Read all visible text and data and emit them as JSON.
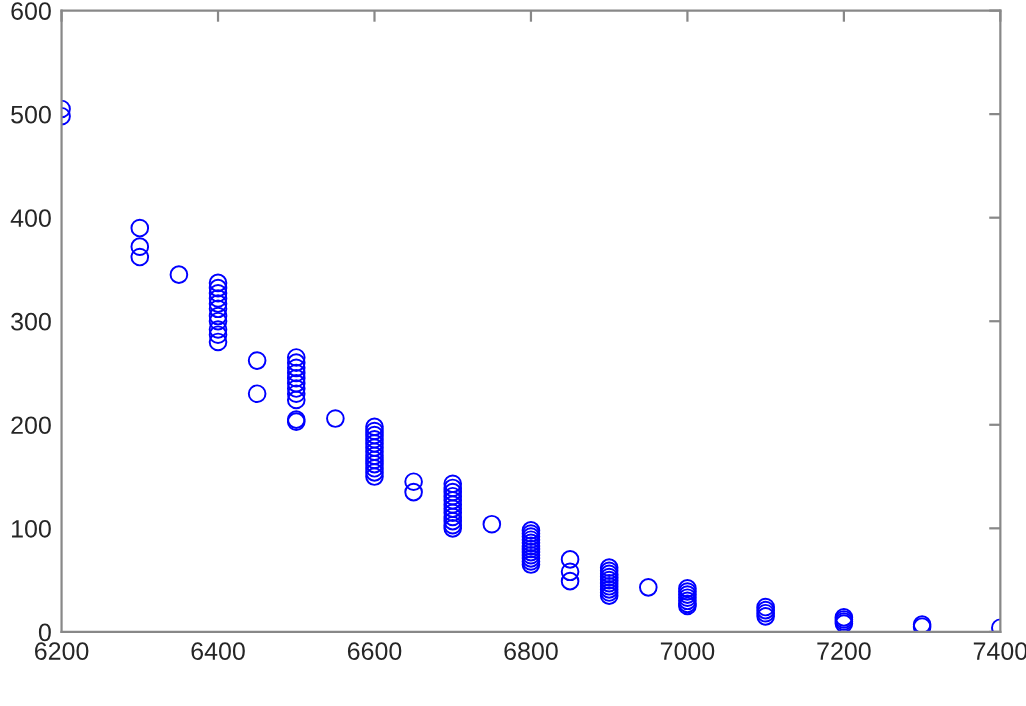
{
  "chart_data": {
    "type": "scatter",
    "x": [
      6200,
      6200,
      6300,
      6300,
      6300,
      6350,
      6400,
      6400,
      6400,
      6400,
      6400,
      6400,
      6400,
      6400,
      6400,
      6400,
      6400,
      6450,
      6450,
      6500,
      6500,
      6500,
      6500,
      6500,
      6500,
      6500,
      6500,
      6500,
      6500,
      6500,
      6550,
      6600,
      6600,
      6600,
      6600,
      6600,
      6600,
      6600,
      6600,
      6600,
      6600,
      6600,
      6600,
      6600,
      6650,
      6650,
      6700,
      6700,
      6700,
      6700,
      6700,
      6700,
      6700,
      6700,
      6700,
      6700,
      6700,
      6700,
      6750,
      6800,
      6800,
      6800,
      6800,
      6800,
      6800,
      6800,
      6800,
      6800,
      6800,
      6800,
      6800,
      6850,
      6850,
      6850,
      6900,
      6900,
      6900,
      6900,
      6900,
      6900,
      6900,
      6900,
      6900,
      6900,
      6950,
      7000,
      7000,
      7000,
      7000,
      7000,
      7000,
      7000,
      7100,
      7100,
      7100,
      7100,
      7200,
      7200,
      7200,
      7200,
      7300,
      7300,
      7400
    ],
    "series": [
      {
        "color": "#0000ff",
        "values": [
          505,
          498,
          390,
          372,
          362,
          345,
          337,
          332,
          327,
          322,
          317,
          312,
          305,
          300,
          292,
          287,
          280,
          262,
          230,
          265,
          260,
          255,
          250,
          245,
          240,
          235,
          230,
          224,
          205,
          203,
          206,
          198,
          194,
          190,
          186,
          182,
          178,
          174,
          170,
          166,
          162,
          158,
          154,
          150,
          145,
          135,
          143,
          139,
          135,
          131,
          127,
          123,
          119,
          115,
          111,
          107,
          103,
          100,
          104,
          98,
          95,
          92,
          89,
          86,
          83,
          80,
          77,
          74,
          71,
          68,
          65,
          70,
          58,
          49,
          62,
          59,
          56,
          53,
          50,
          47,
          44,
          41,
          38,
          35,
          43,
          42,
          39,
          36,
          33,
          30,
          27,
          25,
          24,
          21,
          18,
          15,
          14,
          12,
          10,
          8,
          7,
          5,
          4
        ]
      }
    ],
    "marker": "circle",
    "xlim": [
      6200,
      7400
    ],
    "xticks": [
      6200,
      6400,
      6600,
      6800,
      7000,
      7200,
      7400
    ],
    "ylim": [
      0,
      600
    ],
    "yticks": [
      0,
      100,
      200,
      300,
      400,
      500,
      600
    ],
    "grid": false,
    "legend": false
  }
}
